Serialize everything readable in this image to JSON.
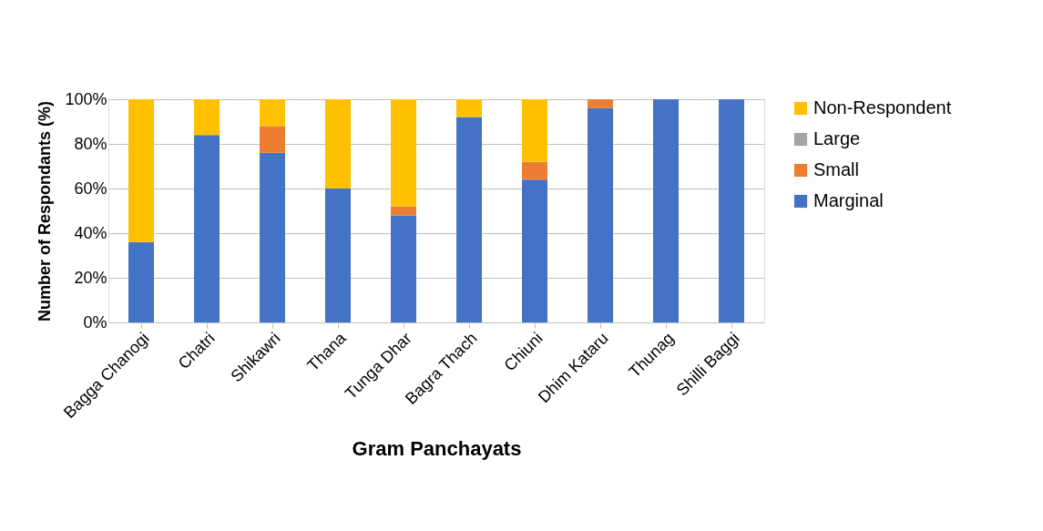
{
  "chart_data": {
    "type": "bar",
    "stacked": true,
    "xlabel": "Gram Panchayats",
    "ylabel": "Number of Respondants (%)",
    "categories": [
      "Bagga Chanogi",
      "Chatri",
      "Shikawri",
      "Thana",
      "Tunga Dhar",
      "Bagra Thach",
      "Chiuni",
      "Dhim Kataru",
      "Thunag",
      "Shilli Baggi"
    ],
    "series": [
      {
        "name": "Marginal",
        "color": "#4472c4",
        "values": [
          36,
          84,
          76,
          60,
          48,
          92,
          64,
          96,
          100,
          100
        ]
      },
      {
        "name": "Small",
        "color": "#ed7d31",
        "values": [
          0,
          0,
          12,
          0,
          4,
          0,
          8,
          4,
          0,
          0
        ]
      },
      {
        "name": "Large",
        "color": "#a5a5a5",
        "values": [
          0,
          0,
          0,
          0,
          0,
          0,
          0,
          0,
          0,
          0
        ]
      },
      {
        "name": "Non-Respondent",
        "color": "#ffc000",
        "values": [
          64,
          16,
          12,
          40,
          48,
          8,
          28,
          0,
          0,
          0
        ]
      }
    ],
    "ylim": [
      0,
      100
    ],
    "yticks": [
      {
        "value": 0,
        "label": "0%"
      },
      {
        "value": 20,
        "label": "20%"
      },
      {
        "value": 40,
        "label": "40%"
      },
      {
        "value": 60,
        "label": "60%"
      },
      {
        "value": 80,
        "label": "80%"
      },
      {
        "value": 100,
        "label": "100%"
      }
    ],
    "grid": "y",
    "legend": "right"
  }
}
